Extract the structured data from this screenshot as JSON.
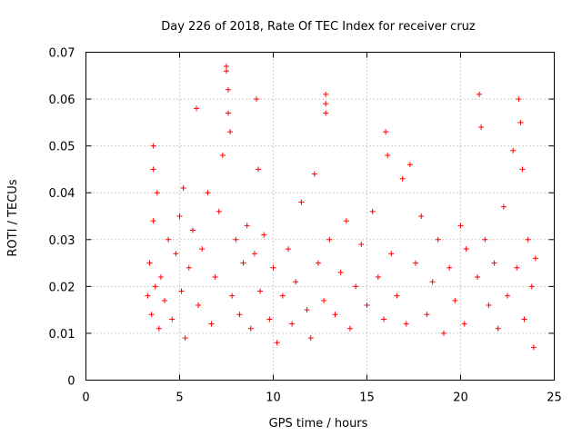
{
  "chart_data": {
    "type": "scatter",
    "title": "Day 226 of 2018, Rate Of TEC Index for receiver cruz",
    "xlabel": "GPS time / hours",
    "ylabel": "ROTI / TECUs",
    "xlim": [
      0,
      25
    ],
    "ylim": [
      0,
      0.07
    ],
    "xticks": [
      0,
      5,
      10,
      15,
      20,
      25
    ],
    "xtick_labels": [
      "0",
      "5",
      "10",
      "15",
      "20",
      "25"
    ],
    "yticks": [
      0,
      0.01,
      0.02,
      0.03,
      0.04,
      0.05,
      0.06,
      0.07
    ],
    "ytick_labels": [
      "0",
      "0.01",
      "0.02",
      "0.03",
      "0.04",
      "0.05",
      "0.06",
      "0.07"
    ],
    "grid": true,
    "marker": "+",
    "color": "#ff0000",
    "series": [
      {
        "name": "ROTI",
        "points": [
          [
            3.3,
            0.018
          ],
          [
            3.4,
            0.025
          ],
          [
            3.5,
            0.014
          ],
          [
            3.6,
            0.034
          ],
          [
            3.6,
            0.05
          ],
          [
            3.6,
            0.045
          ],
          [
            3.7,
            0.02
          ],
          [
            3.8,
            0.04
          ],
          [
            3.9,
            0.011
          ],
          [
            4.0,
            0.022
          ],
          [
            4.2,
            0.017
          ],
          [
            4.4,
            0.03
          ],
          [
            4.6,
            0.013
          ],
          [
            4.8,
            0.027
          ],
          [
            5.0,
            0.035
          ],
          [
            5.1,
            0.019
          ],
          [
            5.2,
            0.041
          ],
          [
            5.3,
            0.009
          ],
          [
            5.5,
            0.024
          ],
          [
            5.7,
            0.032
          ],
          [
            5.9,
            0.058
          ],
          [
            6.0,
            0.016
          ],
          [
            6.2,
            0.028
          ],
          [
            6.5,
            0.04
          ],
          [
            6.7,
            0.012
          ],
          [
            6.9,
            0.022
          ],
          [
            7.1,
            0.036
          ],
          [
            7.3,
            0.048
          ],
          [
            7.5,
            0.066
          ],
          [
            7.5,
            0.067
          ],
          [
            7.6,
            0.062
          ],
          [
            7.6,
            0.057
          ],
          [
            7.7,
            0.053
          ],
          [
            7.8,
            0.018
          ],
          [
            8.0,
            0.03
          ],
          [
            8.2,
            0.014
          ],
          [
            8.4,
            0.025
          ],
          [
            8.6,
            0.033
          ],
          [
            8.8,
            0.011
          ],
          [
            9.0,
            0.027
          ],
          [
            9.1,
            0.06
          ],
          [
            9.2,
            0.045
          ],
          [
            9.3,
            0.019
          ],
          [
            9.5,
            0.031
          ],
          [
            9.8,
            0.013
          ],
          [
            10.0,
            0.024
          ],
          [
            10.2,
            0.008
          ],
          [
            10.5,
            0.018
          ],
          [
            10.8,
            0.028
          ],
          [
            11.0,
            0.012
          ],
          [
            11.2,
            0.021
          ],
          [
            11.5,
            0.038
          ],
          [
            11.8,
            0.015
          ],
          [
            12.0,
            0.009
          ],
          [
            12.2,
            0.044
          ],
          [
            12.4,
            0.025
          ],
          [
            12.7,
            0.017
          ],
          [
            12.8,
            0.061
          ],
          [
            12.8,
            0.059
          ],
          [
            12.8,
            0.057
          ],
          [
            13.0,
            0.03
          ],
          [
            13.3,
            0.014
          ],
          [
            13.6,
            0.023
          ],
          [
            13.9,
            0.034
          ],
          [
            14.1,
            0.011
          ],
          [
            14.4,
            0.02
          ],
          [
            14.7,
            0.029
          ],
          [
            15.0,
            0.016
          ],
          [
            15.3,
            0.036
          ],
          [
            15.6,
            0.022
          ],
          [
            15.9,
            0.013
          ],
          [
            16.0,
            0.053
          ],
          [
            16.1,
            0.048
          ],
          [
            16.3,
            0.027
          ],
          [
            16.6,
            0.018
          ],
          [
            16.9,
            0.043
          ],
          [
            17.1,
            0.012
          ],
          [
            17.3,
            0.046
          ],
          [
            17.6,
            0.025
          ],
          [
            17.9,
            0.035
          ],
          [
            18.2,
            0.014
          ],
          [
            18.5,
            0.021
          ],
          [
            18.8,
            0.03
          ],
          [
            19.1,
            0.01
          ],
          [
            19.4,
            0.024
          ],
          [
            19.7,
            0.017
          ],
          [
            20.0,
            0.033
          ],
          [
            20.2,
            0.012
          ],
          [
            20.3,
            0.028
          ],
          [
            20.9,
            0.022
          ],
          [
            21.0,
            0.061
          ],
          [
            21.1,
            0.054
          ],
          [
            21.3,
            0.03
          ],
          [
            21.5,
            0.016
          ],
          [
            21.8,
            0.025
          ],
          [
            22.0,
            0.011
          ],
          [
            22.3,
            0.037
          ],
          [
            22.5,
            0.018
          ],
          [
            22.8,
            0.049
          ],
          [
            23.0,
            0.024
          ],
          [
            23.1,
            0.06
          ],
          [
            23.2,
            0.055
          ],
          [
            23.3,
            0.045
          ],
          [
            23.4,
            0.013
          ],
          [
            23.6,
            0.03
          ],
          [
            23.8,
            0.02
          ],
          [
            23.9,
            0.007
          ],
          [
            24.0,
            0.026
          ]
        ]
      }
    ]
  }
}
